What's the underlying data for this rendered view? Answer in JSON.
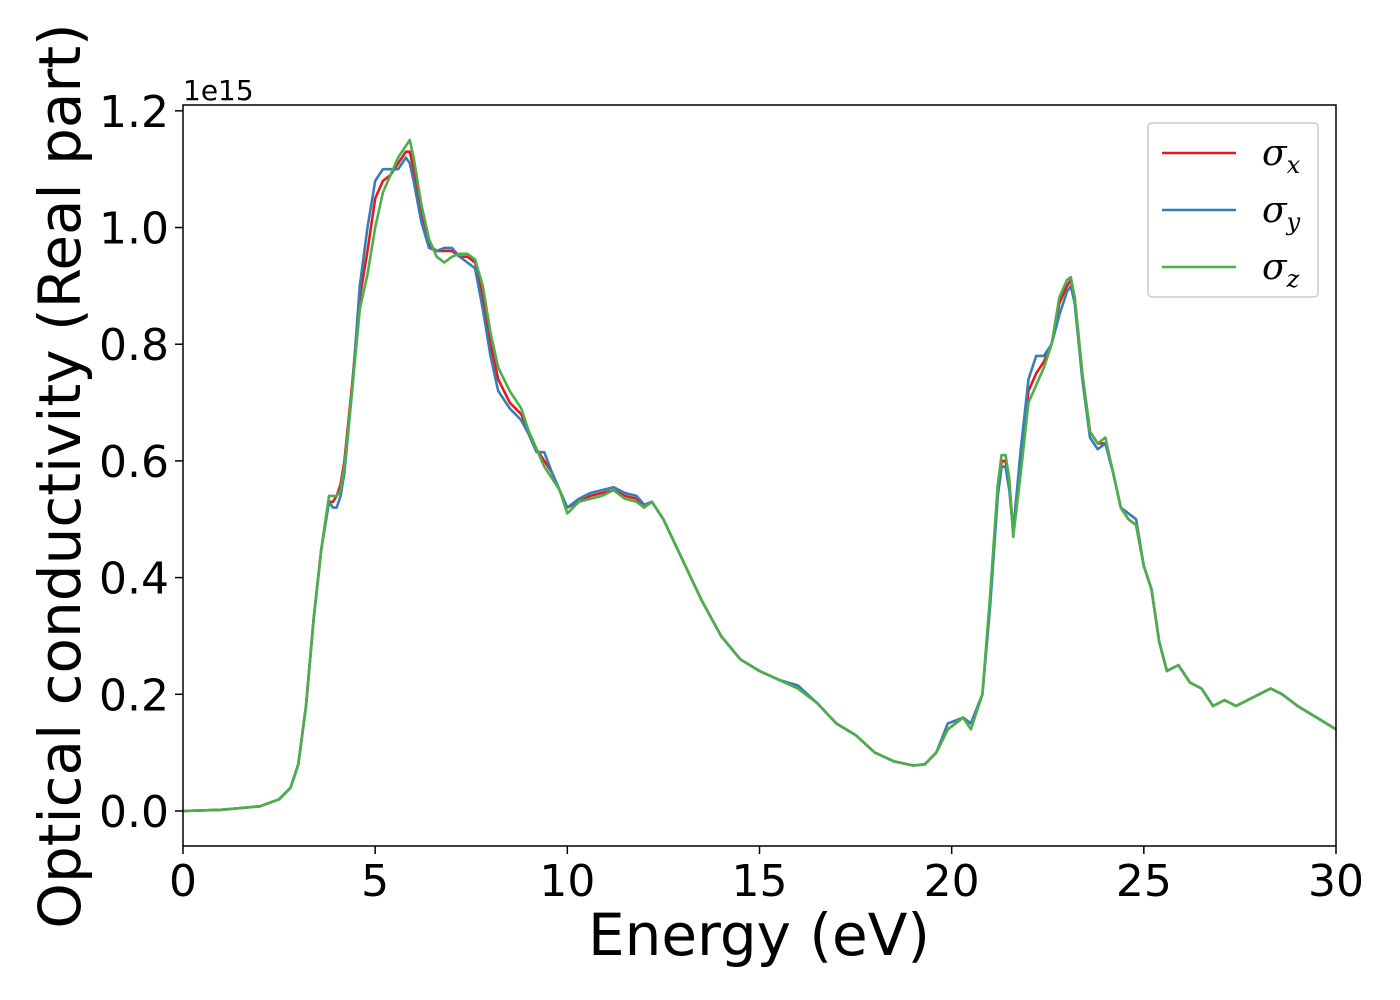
{
  "chart_data": {
    "type": "line",
    "xlabel": "Energy (eV)",
    "ylabel": "Optical conductivity (Real part)",
    "y_offset_label": "1e15",
    "xlim": [
      0,
      30
    ],
    "ylim": [
      -0.06,
      1.21
    ],
    "x_ticks": [
      0,
      5,
      10,
      15,
      20,
      25,
      30
    ],
    "x_tick_labels": [
      "0",
      "5",
      "10",
      "15",
      "20",
      "25",
      "30"
    ],
    "y_ticks": [
      0.0,
      0.2,
      0.4,
      0.6,
      0.8,
      1.0,
      1.2
    ],
    "y_tick_labels": [
      "0.0",
      "0.2",
      "0.4",
      "0.6",
      "0.8",
      "1.0",
      "1.2"
    ],
    "grid": false,
    "legend_position": "top-right",
    "series": [
      {
        "name": "σx",
        "legend_symbol": "σ",
        "legend_subscript": "x",
        "color": "#e41a1c",
        "x": [
          0,
          1,
          2,
          2.5,
          2.8,
          3.0,
          3.2,
          3.4,
          3.6,
          3.8,
          3.9,
          4.0,
          4.1,
          4.2,
          4.4,
          4.6,
          4.8,
          5.0,
          5.2,
          5.4,
          5.6,
          5.8,
          5.9,
          6.0,
          6.2,
          6.4,
          6.6,
          6.8,
          7.0,
          7.2,
          7.4,
          7.6,
          7.8,
          8.0,
          8.2,
          8.5,
          8.8,
          9.0,
          9.2,
          9.4,
          9.6,
          9.8,
          10.0,
          10.3,
          10.6,
          10.9,
          11.2,
          11.5,
          11.8,
          12.0,
          12.2,
          12.5,
          13.0,
          13.5,
          14.0,
          14.5,
          15.0,
          15.5,
          16.0,
          16.5,
          17.0,
          17.5,
          18.0,
          18.5,
          19.0,
          19.3,
          19.6,
          19.9,
          20.1,
          20.3,
          20.5,
          20.8,
          21.0,
          21.2,
          21.3,
          21.4,
          21.5,
          21.6,
          21.8,
          22.0,
          22.2,
          22.4,
          22.6,
          22.8,
          23.0,
          23.1,
          23.2,
          23.4,
          23.6,
          23.8,
          24.0,
          24.2,
          24.4,
          24.6,
          24.8,
          25.0,
          25.2,
          25.4,
          25.6,
          25.9,
          26.2,
          26.5,
          26.8,
          27.1,
          27.4,
          27.7,
          28.0,
          28.3,
          28.6,
          29.0,
          29.5,
          30.0
        ],
        "values": [
          0.0,
          0.002,
          0.008,
          0.02,
          0.04,
          0.08,
          0.18,
          0.33,
          0.45,
          0.53,
          0.53,
          0.54,
          0.56,
          0.6,
          0.73,
          0.88,
          0.96,
          1.05,
          1.08,
          1.09,
          1.11,
          1.13,
          1.13,
          1.1,
          1.02,
          0.97,
          0.96,
          0.96,
          0.96,
          0.95,
          0.95,
          0.94,
          0.88,
          0.8,
          0.74,
          0.7,
          0.68,
          0.65,
          0.62,
          0.6,
          0.58,
          0.55,
          0.52,
          0.53,
          0.54,
          0.545,
          0.55,
          0.54,
          0.535,
          0.52,
          0.53,
          0.5,
          0.43,
          0.36,
          0.3,
          0.26,
          0.24,
          0.225,
          0.21,
          0.185,
          0.15,
          0.13,
          0.1,
          0.085,
          0.078,
          0.08,
          0.1,
          0.14,
          0.15,
          0.16,
          0.15,
          0.2,
          0.36,
          0.55,
          0.6,
          0.6,
          0.56,
          0.48,
          0.6,
          0.72,
          0.75,
          0.77,
          0.8,
          0.87,
          0.9,
          0.91,
          0.88,
          0.75,
          0.65,
          0.63,
          0.63,
          0.58,
          0.52,
          0.5,
          0.49,
          0.42,
          0.38,
          0.29,
          0.24,
          0.25,
          0.22,
          0.21,
          0.18,
          0.19,
          0.18,
          0.19,
          0.2,
          0.21,
          0.2,
          0.18,
          0.16,
          0.14
        ]
      },
      {
        "name": "σy",
        "legend_symbol": "σ",
        "legend_subscript": "y",
        "color": "#377eb8",
        "x": [
          0,
          1,
          2,
          2.5,
          2.8,
          3.0,
          3.2,
          3.4,
          3.6,
          3.8,
          3.9,
          4.0,
          4.1,
          4.2,
          4.4,
          4.6,
          4.8,
          5.0,
          5.2,
          5.4,
          5.6,
          5.8,
          5.9,
          6.0,
          6.2,
          6.4,
          6.6,
          6.8,
          7.0,
          7.2,
          7.4,
          7.6,
          7.8,
          8.0,
          8.2,
          8.5,
          8.8,
          9.0,
          9.2,
          9.4,
          9.6,
          9.8,
          10.0,
          10.3,
          10.6,
          10.9,
          11.2,
          11.5,
          11.8,
          12.0,
          12.2,
          12.5,
          13.0,
          13.5,
          14.0,
          14.5,
          15.0,
          15.5,
          16.0,
          16.5,
          17.0,
          17.5,
          18.0,
          18.5,
          19.0,
          19.3,
          19.6,
          19.9,
          20.1,
          20.3,
          20.5,
          20.8,
          21.0,
          21.2,
          21.3,
          21.4,
          21.5,
          21.6,
          21.8,
          22.0,
          22.2,
          22.4,
          22.6,
          22.8,
          23.0,
          23.1,
          23.2,
          23.4,
          23.6,
          23.8,
          24.0,
          24.2,
          24.4,
          24.6,
          24.8,
          25.0,
          25.2,
          25.4,
          25.6,
          25.9,
          26.2,
          26.5,
          26.8,
          27.1,
          27.4,
          27.7,
          28.0,
          28.3,
          28.6,
          29.0,
          29.5,
          30.0
        ],
        "values": [
          0.0,
          0.002,
          0.008,
          0.02,
          0.04,
          0.08,
          0.18,
          0.33,
          0.45,
          0.53,
          0.52,
          0.52,
          0.54,
          0.58,
          0.72,
          0.9,
          1.0,
          1.08,
          1.1,
          1.1,
          1.1,
          1.12,
          1.11,
          1.08,
          1.01,
          0.965,
          0.96,
          0.965,
          0.965,
          0.95,
          0.94,
          0.93,
          0.86,
          0.78,
          0.72,
          0.69,
          0.67,
          0.645,
          0.615,
          0.615,
          0.58,
          0.55,
          0.52,
          0.535,
          0.545,
          0.55,
          0.555,
          0.545,
          0.54,
          0.525,
          0.53,
          0.5,
          0.43,
          0.36,
          0.3,
          0.26,
          0.24,
          0.225,
          0.215,
          0.185,
          0.15,
          0.13,
          0.1,
          0.085,
          0.078,
          0.08,
          0.1,
          0.15,
          0.155,
          0.16,
          0.15,
          0.2,
          0.35,
          0.54,
          0.59,
          0.59,
          0.55,
          0.48,
          0.62,
          0.74,
          0.78,
          0.78,
          0.8,
          0.85,
          0.89,
          0.9,
          0.87,
          0.74,
          0.64,
          0.62,
          0.63,
          0.58,
          0.52,
          0.51,
          0.5,
          0.42,
          0.38,
          0.29,
          0.24,
          0.25,
          0.22,
          0.21,
          0.18,
          0.19,
          0.18,
          0.19,
          0.2,
          0.21,
          0.2,
          0.18,
          0.16,
          0.14
        ]
      },
      {
        "name": "σz",
        "legend_symbol": "σ",
        "legend_subscript": "z",
        "color": "#4daf4a",
        "x": [
          0,
          1,
          2,
          2.5,
          2.8,
          3.0,
          3.2,
          3.4,
          3.6,
          3.8,
          3.9,
          4.0,
          4.1,
          4.2,
          4.4,
          4.6,
          4.8,
          5.0,
          5.2,
          5.4,
          5.6,
          5.8,
          5.9,
          6.0,
          6.2,
          6.4,
          6.6,
          6.8,
          7.0,
          7.2,
          7.4,
          7.6,
          7.8,
          8.0,
          8.2,
          8.5,
          8.8,
          9.0,
          9.2,
          9.4,
          9.6,
          9.8,
          10.0,
          10.3,
          10.6,
          10.9,
          11.2,
          11.5,
          11.8,
          12.0,
          12.2,
          12.5,
          13.0,
          13.5,
          14.0,
          14.5,
          15.0,
          15.5,
          16.0,
          16.5,
          17.0,
          17.5,
          18.0,
          18.5,
          19.0,
          19.3,
          19.6,
          19.9,
          20.1,
          20.3,
          20.5,
          20.8,
          21.0,
          21.2,
          21.3,
          21.4,
          21.5,
          21.6,
          21.8,
          22.0,
          22.2,
          22.4,
          22.6,
          22.8,
          23.0,
          23.1,
          23.2,
          23.4,
          23.6,
          23.8,
          24.0,
          24.2,
          24.4,
          24.6,
          24.8,
          25.0,
          25.2,
          25.4,
          25.6,
          25.9,
          26.2,
          26.5,
          26.8,
          27.1,
          27.4,
          27.7,
          28.0,
          28.3,
          28.6,
          29.0,
          29.5,
          30.0
        ],
        "values": [
          0.0,
          0.002,
          0.008,
          0.02,
          0.04,
          0.08,
          0.18,
          0.33,
          0.45,
          0.54,
          0.54,
          0.54,
          0.55,
          0.59,
          0.72,
          0.86,
          0.92,
          1.0,
          1.06,
          1.09,
          1.12,
          1.14,
          1.15,
          1.12,
          1.04,
          0.98,
          0.95,
          0.94,
          0.95,
          0.955,
          0.955,
          0.945,
          0.9,
          0.82,
          0.76,
          0.72,
          0.69,
          0.65,
          0.62,
          0.59,
          0.57,
          0.55,
          0.51,
          0.53,
          0.535,
          0.54,
          0.55,
          0.535,
          0.53,
          0.52,
          0.53,
          0.5,
          0.43,
          0.36,
          0.3,
          0.26,
          0.24,
          0.225,
          0.21,
          0.185,
          0.15,
          0.13,
          0.1,
          0.085,
          0.078,
          0.08,
          0.1,
          0.14,
          0.15,
          0.16,
          0.14,
          0.2,
          0.37,
          0.56,
          0.61,
          0.61,
          0.57,
          0.47,
          0.58,
          0.7,
          0.73,
          0.76,
          0.8,
          0.88,
          0.91,
          0.915,
          0.88,
          0.75,
          0.65,
          0.63,
          0.64,
          0.58,
          0.52,
          0.5,
          0.49,
          0.42,
          0.38,
          0.29,
          0.24,
          0.25,
          0.22,
          0.21,
          0.18,
          0.19,
          0.18,
          0.19,
          0.2,
          0.21,
          0.2,
          0.18,
          0.16,
          0.14
        ]
      }
    ]
  }
}
